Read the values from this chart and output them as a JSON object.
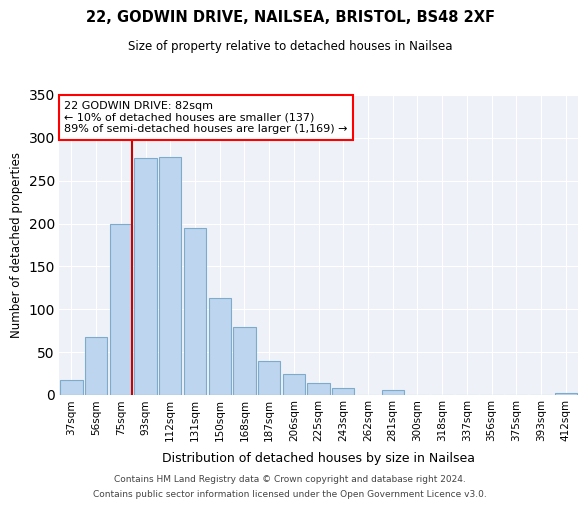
{
  "title": "22, GODWIN DRIVE, NAILSEA, BRISTOL, BS48 2XF",
  "subtitle": "Size of property relative to detached houses in Nailsea",
  "xlabel": "Distribution of detached houses by size in Nailsea",
  "ylabel": "Number of detached properties",
  "bar_labels": [
    "37sqm",
    "56sqm",
    "75sqm",
    "93sqm",
    "112sqm",
    "131sqm",
    "150sqm",
    "168sqm",
    "187sqm",
    "206sqm",
    "225sqm",
    "243sqm",
    "262sqm",
    "281sqm",
    "300sqm",
    "318sqm",
    "337sqm",
    "356sqm",
    "375sqm",
    "393sqm",
    "412sqm"
  ],
  "bar_heights": [
    18,
    68,
    200,
    277,
    278,
    195,
    113,
    79,
    40,
    25,
    14,
    8,
    0,
    6,
    0,
    0,
    0,
    0,
    0,
    0,
    2
  ],
  "bar_color": "#bdd5ee",
  "bar_edge_color": "#7eaacc",
  "highlight_line_color": "#cc0000",
  "highlight_index": 2,
  "annotation_title": "22 GODWIN DRIVE: 82sqm",
  "annotation_line1": "← 10% of detached houses are smaller (137)",
  "annotation_line2": "89% of semi-detached houses are larger (1,169) →",
  "ylim": [
    0,
    350
  ],
  "yticks": [
    0,
    50,
    100,
    150,
    200,
    250,
    300,
    350
  ],
  "footer1": "Contains HM Land Registry data © Crown copyright and database right 2024.",
  "footer2": "Contains public sector information licensed under the Open Government Licence v3.0.",
  "bg_color": "#eef2f8",
  "plot_bg_color": "#eef2f8"
}
